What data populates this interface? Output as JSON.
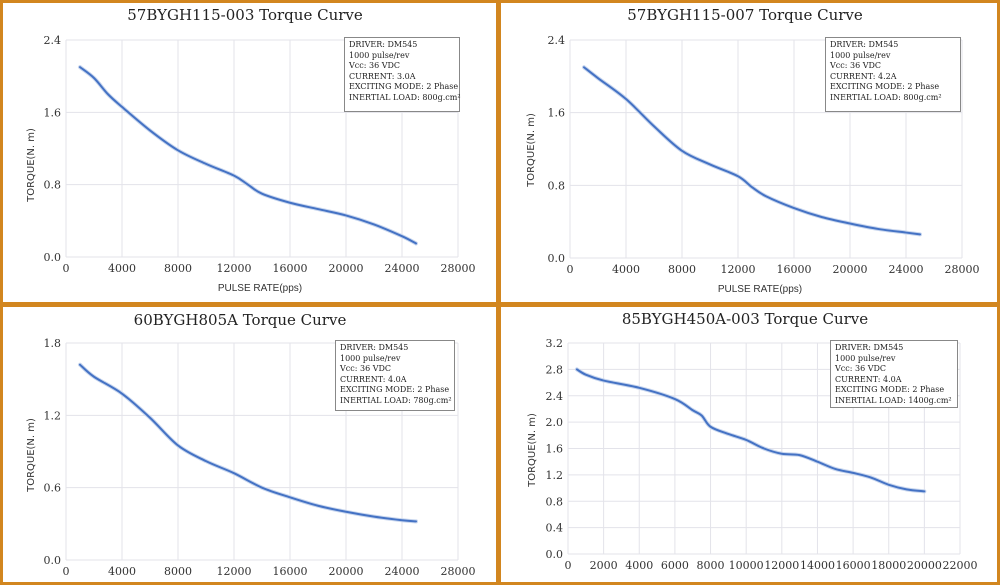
{
  "colors": {
    "border": "#d2861f",
    "line": "#4472c4",
    "grid": "#e3e3ea"
  },
  "chart_data": [
    {
      "type": "line",
      "title": "57BYGH115-003 Torque Curve",
      "xlabel": "PULSE RATE(pps)",
      "ylabel": "TORQUE(N. m)",
      "xlim": [
        0,
        28000
      ],
      "ylim": [
        0,
        2.4
      ],
      "xticks": [
        "0",
        "4000",
        "8000",
        "12000",
        "16000",
        "20000",
        "24000",
        "28000"
      ],
      "yticks": [
        "0.0",
        "0.8",
        "1.6",
        "2.4"
      ],
      "info": [
        "DRIVER: DM545",
        "1000 pulse/rev",
        "Vcc: 36 VDC",
        "CURRENT: 3.0A",
        "EXCITING MODE: 2 Phase",
        "INERTIAL LOAD: 800g.cm²"
      ],
      "series": [
        {
          "name": "Torque",
          "x": [
            1000,
            2000,
            3000,
            4000,
            6000,
            8000,
            10000,
            12000,
            13000,
            14000,
            16000,
            18000,
            20000,
            22000,
            24000,
            25000
          ],
          "y": [
            2.1,
            1.98,
            1.8,
            1.66,
            1.4,
            1.18,
            1.03,
            0.9,
            0.8,
            0.7,
            0.6,
            0.53,
            0.46,
            0.36,
            0.23,
            0.15
          ]
        }
      ]
    },
    {
      "type": "line",
      "title": "57BYGH115-007 Torque Curve",
      "xlabel": "PULSE RATE(pps)",
      "ylabel": "TORQUE(N. m)",
      "xlim": [
        0,
        28000
      ],
      "ylim": [
        0,
        2.4
      ],
      "xticks": [
        "0",
        "4000",
        "8000",
        "12000",
        "16000",
        "20000",
        "24000",
        "28000"
      ],
      "yticks": [
        "0.0",
        "0.8",
        "1.6",
        "2.4"
      ],
      "info": [
        "DRIVER: DM545",
        "1000 pulse/rev",
        "Vcc: 36 VDC",
        "CURRENT: 4.2A",
        "EXCITING MODE: 2 Phase",
        "INERTIAL LOAD: 800g.cm²"
      ],
      "series": [
        {
          "name": "Torque",
          "x": [
            1000,
            2000,
            4000,
            6000,
            8000,
            10000,
            12000,
            13000,
            14000,
            16000,
            18000,
            20000,
            22000,
            24000,
            25000
          ],
          "y": [
            2.1,
            1.98,
            1.75,
            1.45,
            1.18,
            1.03,
            0.9,
            0.78,
            0.68,
            0.55,
            0.45,
            0.38,
            0.32,
            0.28,
            0.26
          ]
        }
      ]
    },
    {
      "type": "line",
      "title": "60BYGH805A Torque Curve",
      "xlabel": "",
      "ylabel": "TORQUE(N. m)",
      "xlim": [
        0,
        28000
      ],
      "ylim": [
        0,
        1.8
      ],
      "xticks": [
        "0",
        "4000",
        "8000",
        "12000",
        "16000",
        "20000",
        "24000",
        "28000"
      ],
      "yticks": [
        "0.0",
        "0.6",
        "1.2",
        "1.8"
      ],
      "info": [
        "DRIVER: DM545",
        "1000  pulse/rev",
        "Vcc: 36 VDC",
        "CURRENT: 4.0A",
        "EXCITING MODE: 2 Phase",
        "INERTIAL LOAD: 780g.cm²"
      ],
      "series": [
        {
          "name": "Torque",
          "x": [
            1000,
            2000,
            4000,
            6000,
            8000,
            10000,
            12000,
            14000,
            16000,
            18000,
            20000,
            22000,
            24000,
            25000
          ],
          "y": [
            1.62,
            1.52,
            1.38,
            1.18,
            0.95,
            0.82,
            0.72,
            0.6,
            0.52,
            0.45,
            0.4,
            0.36,
            0.33,
            0.32
          ]
        }
      ]
    },
    {
      "type": "line",
      "title": "85BYGH450A-003 Torque Curve",
      "xlabel": "",
      "ylabel": "TORQUE(N. m)",
      "xlim": [
        0,
        22000
      ],
      "ylim": [
        0,
        3.2
      ],
      "xticks": [
        "0",
        "2000",
        "4000",
        "6000",
        "8000",
        "10000",
        "12000",
        "14000",
        "16000",
        "18000",
        "20000",
        "22000"
      ],
      "yticks": [
        "0.0",
        "0.4",
        "0.8",
        "1.2",
        "1.6",
        "2.0",
        "2.4",
        "2.8",
        "3.2"
      ],
      "info": [
        "DRIVER: DM545",
        "1000  pulse/rev",
        "Vcc: 36 VDC",
        "CURRENT: 4.0A",
        "EXCITING MODE: 2 Phase",
        "INERTIAL LOAD: 1400g.cm²"
      ],
      "series": [
        {
          "name": "Torque",
          "x": [
            500,
            1000,
            2000,
            4000,
            6000,
            7000,
            7500,
            8000,
            9000,
            10000,
            11000,
            12000,
            13000,
            14000,
            15000,
            16000,
            17000,
            18000,
            19000,
            20000
          ],
          "y": [
            2.8,
            2.72,
            2.63,
            2.52,
            2.35,
            2.18,
            2.1,
            1.93,
            1.82,
            1.73,
            1.6,
            1.52,
            1.5,
            1.4,
            1.29,
            1.23,
            1.16,
            1.05,
            0.98,
            0.95
          ]
        }
      ]
    }
  ]
}
